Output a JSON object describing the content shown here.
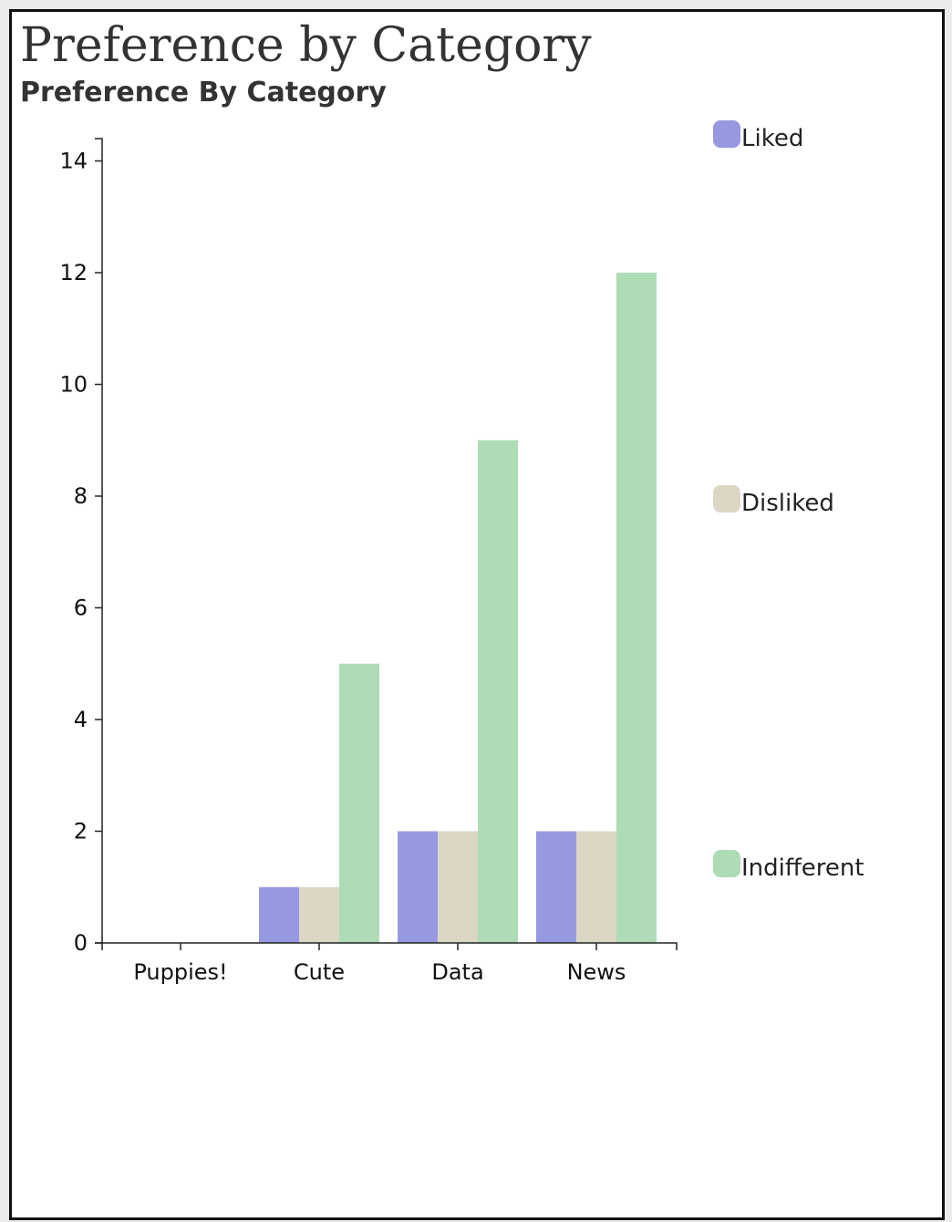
{
  "chart_data": {
    "type": "bar",
    "title": "Preference by Category",
    "subtitle": "Preference By Category",
    "categories": [
      "Puppies!",
      "Cute",
      "Data",
      "News"
    ],
    "series": [
      {
        "name": "Liked",
        "color": "#9699e0",
        "values": [
          0,
          1,
          2,
          2
        ]
      },
      {
        "name": "Disliked",
        "color": "#dcd6c5",
        "values": [
          0,
          1,
          2,
          2
        ]
      },
      {
        "name": "Indifferent",
        "color": "#addcb6",
        "values": [
          0,
          5,
          9,
          12
        ]
      }
    ],
    "ylim": [
      0,
      14.4
    ],
    "yticks": [
      "0",
      "2",
      "4",
      "6",
      "8",
      "10",
      "12",
      "14"
    ],
    "legend_position": "right",
    "grid": false
  }
}
